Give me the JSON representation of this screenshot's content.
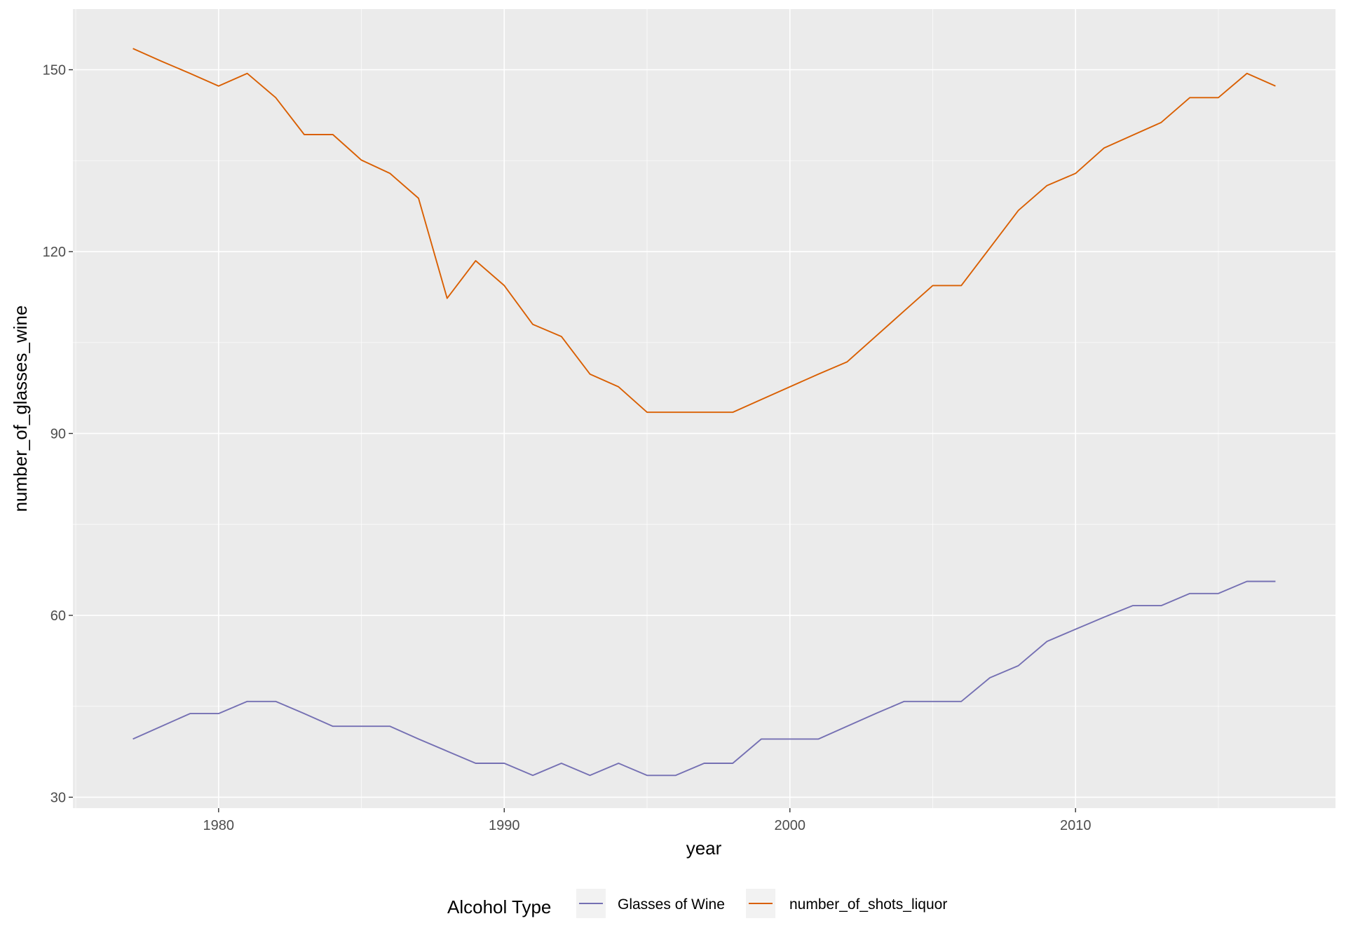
{
  "chart_data": {
    "type": "line",
    "title": "",
    "xlabel": "year",
    "ylabel": "number_of_glasses_wine",
    "xlim": [
      1974.9,
      2019.1
    ],
    "ylim": [
      28.2,
      160.0
    ],
    "x_ticks": [
      1980,
      1990,
      2000,
      2010
    ],
    "y_ticks": [
      30,
      60,
      90,
      120,
      150
    ],
    "grid": true,
    "legend": {
      "title": "Alcohol Type",
      "position": "bottom"
    },
    "x": [
      1977,
      1978,
      1979,
      1980,
      1981,
      1982,
      1983,
      1984,
      1985,
      1986,
      1987,
      1988,
      1989,
      1990,
      1991,
      1992,
      1993,
      1994,
      1995,
      1996,
      1997,
      1998,
      1999,
      2000,
      2001,
      2002,
      2003,
      2004,
      2005,
      2006,
      2007,
      2008,
      2009,
      2010,
      2011,
      2012,
      2013,
      2014,
      2015,
      2016,
      2017
    ],
    "series": [
      {
        "name": "Glasses of Wine",
        "color": "#7570b3",
        "values": [
          39.6,
          41.7,
          43.8,
          43.8,
          45.8,
          45.8,
          43.8,
          41.7,
          41.7,
          41.7,
          39.6,
          37.6,
          35.6,
          35.6,
          33.6,
          35.6,
          33.6,
          35.6,
          33.6,
          33.6,
          35.6,
          35.6,
          39.6,
          39.6,
          39.6,
          41.7,
          43.8,
          45.8,
          45.8,
          45.8,
          49.7,
          51.7,
          55.7,
          57.7,
          59.7,
          61.6,
          61.6,
          63.6,
          63.6,
          65.6,
          65.6
        ]
      },
      {
        "name": "number_of_shots_liquor",
        "color": "#d95f02",
        "values": [
          153.5,
          151.4,
          149.4,
          147.3,
          149.4,
          145.4,
          139.3,
          139.3,
          135.1,
          132.9,
          128.8,
          112.3,
          118.5,
          114.4,
          108.0,
          106.0,
          99.8,
          97.7,
          93.5,
          93.5,
          93.5,
          93.5,
          95.6,
          97.7,
          99.8,
          101.8,
          106.0,
          110.2,
          114.4,
          114.4,
          120.6,
          126.8,
          130.9,
          132.9,
          137.1,
          139.2,
          141.3,
          145.4,
          145.4,
          149.4,
          147.3
        ]
      }
    ]
  }
}
